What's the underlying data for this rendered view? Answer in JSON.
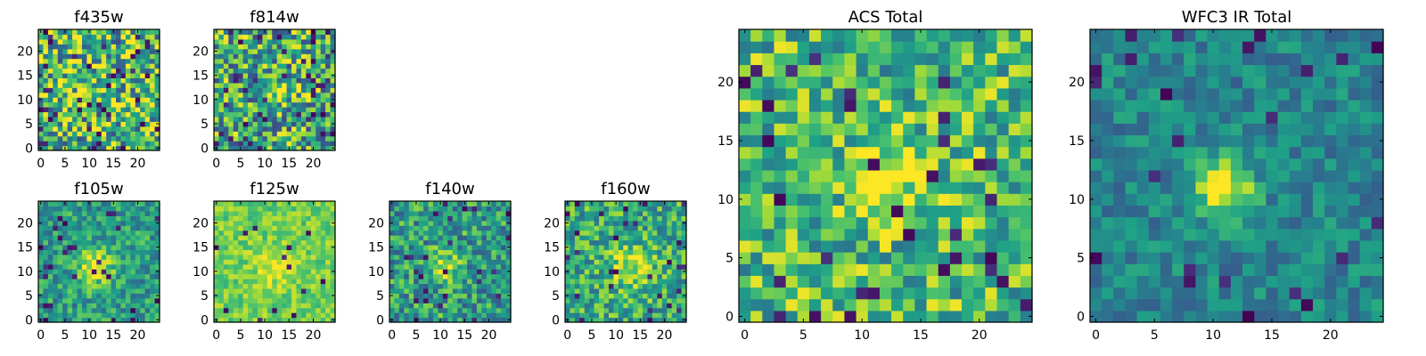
{
  "figure": {
    "title": ""
  },
  "colormap": {
    "name": "viridis",
    "stops": [
      "#440154",
      "#46327e",
      "#365c8d",
      "#277f8e",
      "#1fa187",
      "#4ac16d",
      "#a0da39",
      "#fde725"
    ]
  },
  "chart_data": [
    {
      "type": "heatmap",
      "title": "f435w",
      "grid_size": 25,
      "xlim": [
        0,
        24
      ],
      "ylim": [
        0,
        24
      ],
      "xticks": [
        0,
        5,
        10,
        15,
        20
      ],
      "yticks": [
        0,
        5,
        10,
        15,
        20
      ],
      "seed": 11,
      "base": 0.66,
      "noise": 0.42,
      "peak": 0.0,
      "peak_center": [
        12,
        12
      ],
      "peak_sigma": 2.0,
      "dark_frac": 0.06
    },
    {
      "type": "heatmap",
      "title": "f814w",
      "grid_size": 25,
      "xlim": [
        0,
        24
      ],
      "ylim": [
        0,
        24
      ],
      "xticks": [
        0,
        5,
        10,
        15,
        20
      ],
      "yticks": [
        0,
        5,
        10,
        15,
        20
      ],
      "seed": 23,
      "base": 0.62,
      "noise": 0.4,
      "peak": 0.32,
      "peak_center": [
        12,
        11
      ],
      "peak_sigma": 1.8,
      "dark_frac": 0.07
    },
    {
      "type": "heatmap",
      "title": "f105w",
      "grid_size": 25,
      "xlim": [
        0,
        24
      ],
      "ylim": [
        0,
        24
      ],
      "xticks": [
        0,
        5,
        10,
        15,
        20
      ],
      "yticks": [
        0,
        5,
        10,
        15,
        20
      ],
      "seed": 37,
      "base": 0.55,
      "noise": 0.22,
      "peak": 0.45,
      "peak_center": [
        11,
        11
      ],
      "peak_sigma": 2.6,
      "dark_frac": 0.05
    },
    {
      "type": "heatmap",
      "title": "f125w",
      "grid_size": 25,
      "xlim": [
        0,
        24
      ],
      "ylim": [
        0,
        24
      ],
      "xticks": [
        0,
        5,
        10,
        15,
        20
      ],
      "yticks": [
        0,
        5,
        10,
        15,
        20
      ],
      "seed": 41,
      "base": 0.78,
      "noise": 0.14,
      "peak": 0.15,
      "peak_center": [
        12,
        11
      ],
      "peak_sigma": 3.0,
      "dark_frac": 0.02
    },
    {
      "type": "heatmap",
      "title": "f140w",
      "grid_size": 25,
      "xlim": [
        0,
        24
      ],
      "ylim": [
        0,
        24
      ],
      "xticks": [
        0,
        5,
        10,
        15,
        20
      ],
      "yticks": [
        0,
        5,
        10,
        15,
        20
      ],
      "seed": 53,
      "base": 0.55,
      "noise": 0.28,
      "peak": 0.45,
      "peak_center": [
        11,
        11
      ],
      "peak_sigma": 2.0,
      "dark_frac": 0.05
    },
    {
      "type": "heatmap",
      "title": "f160w",
      "grid_size": 25,
      "xlim": [
        0,
        24
      ],
      "ylim": [
        0,
        24
      ],
      "xticks": [
        0,
        5,
        10,
        15,
        20
      ],
      "yticks": [
        0,
        5,
        10,
        15,
        20
      ],
      "seed": 67,
      "base": 0.62,
      "noise": 0.26,
      "peak": 0.3,
      "peak_center": [
        13,
        11
      ],
      "peak_sigma": 3.2,
      "dark_frac": 0.04
    },
    {
      "type": "heatmap",
      "title": "ACS Total",
      "grid_size": 25,
      "xlim": [
        0,
        24
      ],
      "ylim": [
        0,
        24
      ],
      "xticks": [
        0,
        5,
        10,
        15,
        20
      ],
      "yticks": [
        0,
        5,
        10,
        15,
        20
      ],
      "seed": 79,
      "base": 0.68,
      "noise": 0.3,
      "peak": 0.28,
      "peak_center": [
        12,
        12
      ],
      "peak_sigma": 2.2,
      "dark_frac": 0.06
    },
    {
      "type": "heatmap",
      "title": "WFC3 IR Total",
      "grid_size": 25,
      "xlim": [
        0,
        24
      ],
      "ylim": [
        0,
        24
      ],
      "xticks": [
        0,
        5,
        10,
        15,
        20
      ],
      "yticks": [
        0,
        5,
        10,
        15,
        20
      ],
      "seed": 97,
      "base": 0.45,
      "noise": 0.16,
      "peak": 0.6,
      "peak_center": [
        11,
        11
      ],
      "peak_sigma": 1.7,
      "dark_frac": 0.04
    }
  ]
}
